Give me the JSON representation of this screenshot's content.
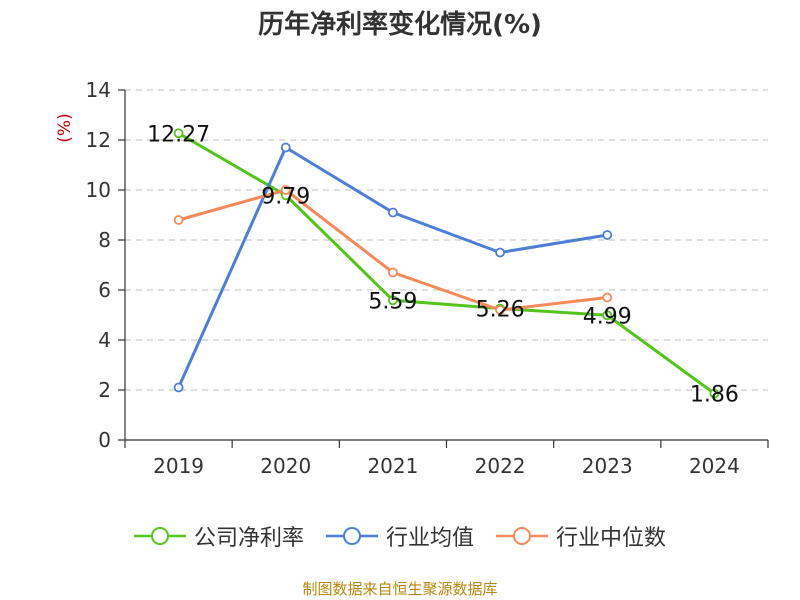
{
  "title": "历年净利率变化情况(%)",
  "source": "制图数据来自恒生聚源数据库",
  "chart_data": {
    "type": "line",
    "title": "历年净利率变化情况(%)",
    "ylabel": "(%)",
    "xlabel": "",
    "categories": [
      "2019",
      "2020",
      "2021",
      "2022",
      "2023",
      "2024"
    ],
    "ylim": [
      0,
      14
    ],
    "yticks": [
      0,
      2,
      4,
      6,
      8,
      10,
      12,
      14
    ],
    "grid": true,
    "legend_position": "bottom",
    "series": [
      {
        "name": "公司净利率",
        "color": "#52c41a",
        "values": [
          12.27,
          9.79,
          5.59,
          5.26,
          4.99,
          1.86
        ],
        "labels": [
          "12.27",
          "9.79",
          "5.59",
          "5.26",
          "4.99",
          "1.86"
        ]
      },
      {
        "name": "行业均值",
        "color": "#4e7fd8",
        "values": [
          2.1,
          11.7,
          9.1,
          7.5,
          8.2,
          null
        ],
        "labels": null
      },
      {
        "name": "行业中位数",
        "color": "#f5895a",
        "values": [
          8.8,
          10.0,
          6.7,
          5.2,
          5.7,
          null
        ],
        "labels": null
      }
    ]
  }
}
